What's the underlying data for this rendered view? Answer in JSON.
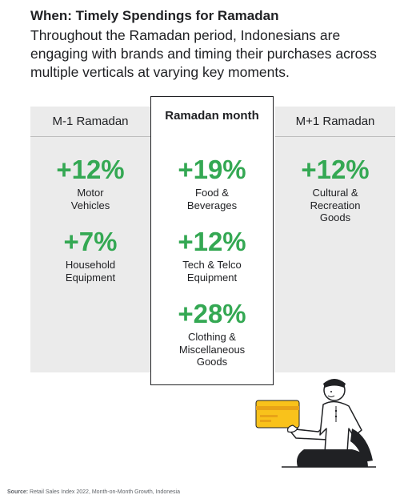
{
  "header": {
    "title": "When: Timely Spendings for Ramadan",
    "subtitle": "Throughout the Ramadan period, Indonesians are engaging with brands and timing their purchases across multiple verticals at varying key moments."
  },
  "columns": [
    {
      "label": "M-1 Ramadan",
      "stats": [
        {
          "value": "+12%",
          "category": "Motor Vehicles"
        },
        {
          "value": "+7%",
          "category": "Household Equipment"
        }
      ]
    },
    {
      "label": "Ramadan month",
      "stats": [
        {
          "value": "+19%",
          "category": "Food & Beverages"
        },
        {
          "value": "+12%",
          "category": "Tech & Telco Equipment"
        },
        {
          "value": "+28%",
          "category": "Clothing & Miscellaneous Goods"
        }
      ]
    },
    {
      "label": "M+1 Ramadan",
      "stats": [
        {
          "value": "+12%",
          "category": "Cultural & Recreation Goods"
        }
      ]
    }
  ],
  "colors": {
    "accent_green": "#34a853",
    "card_yellow": "#f9c21b",
    "panel_gray": "#ebebeb"
  },
  "illustration": {
    "icon": "person-with-payment-card-icon"
  },
  "footer": {
    "source_label": "Source:",
    "source_text": "Retail Sales Index 2022, Month-on-Month Growth, Indonesia"
  }
}
